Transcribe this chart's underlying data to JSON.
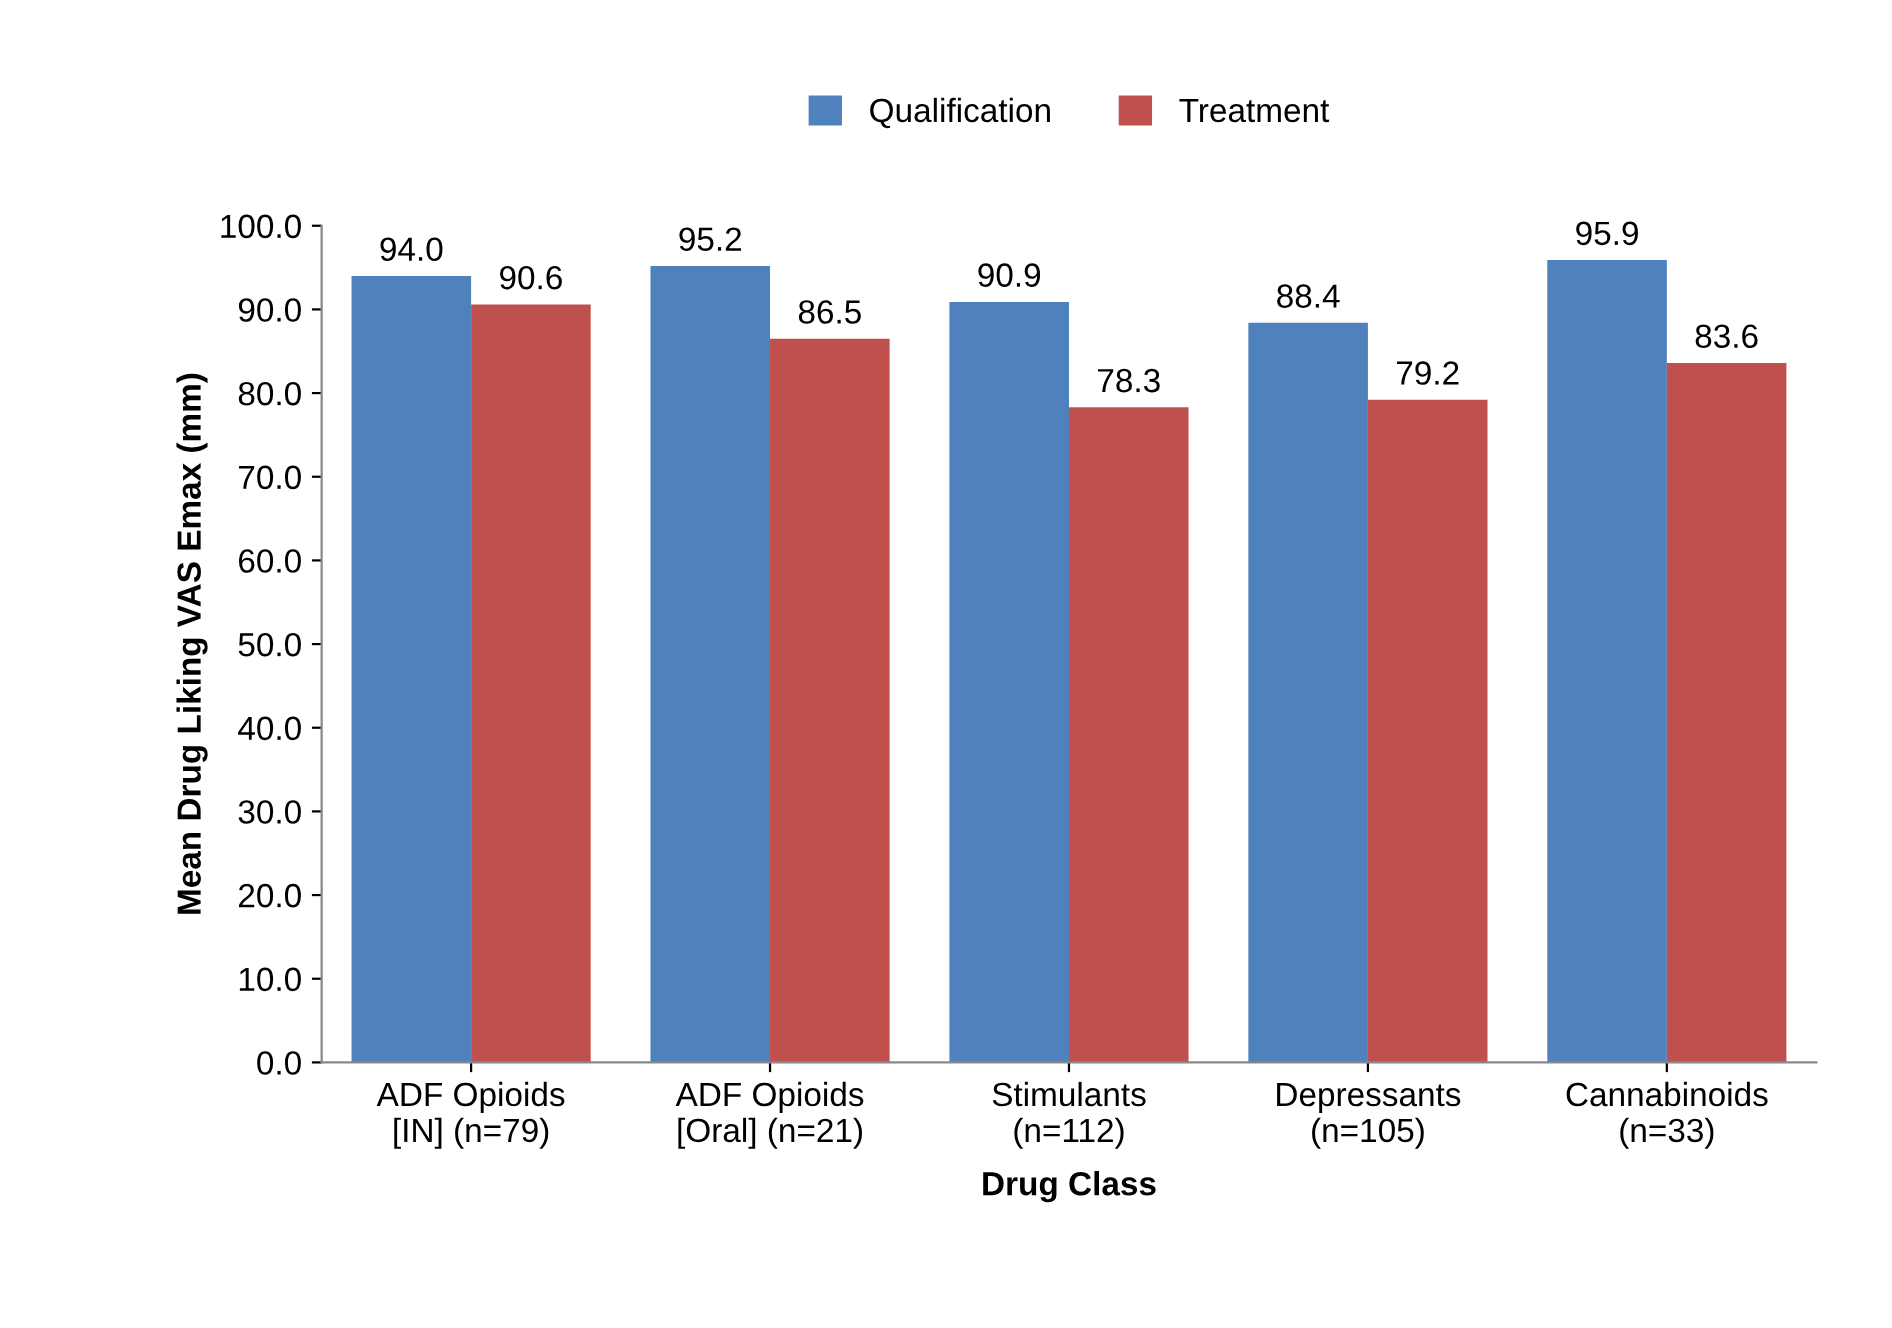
{
  "chart_data": {
    "type": "bar",
    "xlabel": "Drug Class",
    "ylabel": "Mean Drug Liking VAS Emax (mm)",
    "categories": [
      "ADF Opioids\n[IN] (n=79)",
      "ADF Opioids\n[Oral] (n=21)",
      "Stimulants\n(n=112)",
      "Depressants\n(n=105)",
      "Cannabinoids\n(n=33)"
    ],
    "series": [
      {
        "name": "Qualification",
        "color": "#4f81bd",
        "values": [
          94.0,
          95.2,
          90.9,
          88.4,
          95.9
        ],
        "value_labels": [
          "94.0",
          "95.2",
          "90.9",
          "88.4",
          "95.9"
        ]
      },
      {
        "name": "Treatment",
        "color": "#c0504d",
        "values": [
          90.6,
          86.5,
          78.3,
          79.2,
          83.6
        ],
        "value_labels": [
          "90.6",
          "86.5",
          "78.3",
          "79.2",
          "83.6"
        ]
      }
    ],
    "ylim": [
      0,
      100
    ],
    "yticks": [
      {
        "value": 0,
        "label": "0.0"
      },
      {
        "value": 10,
        "label": "10.0"
      },
      {
        "value": 20,
        "label": "20.0"
      },
      {
        "value": 30,
        "label": "30.0"
      },
      {
        "value": 40,
        "label": "40.0"
      },
      {
        "value": 50,
        "label": "50.0"
      },
      {
        "value": 60,
        "label": "60.0"
      },
      {
        "value": 70,
        "label": "70.0"
      },
      {
        "value": 80,
        "label": "80.0"
      },
      {
        "value": 90,
        "label": "90.0"
      },
      {
        "value": 100,
        "label": "100.0"
      }
    ],
    "grid": false,
    "legend": "top"
  }
}
